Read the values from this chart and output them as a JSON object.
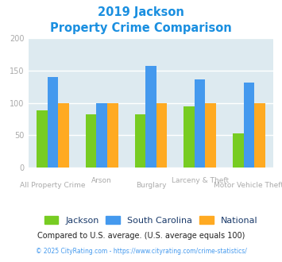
{
  "title_line1": "2019 Jackson",
  "title_line2": "Property Crime Comparison",
  "categories_top": [
    "",
    "Arson",
    "",
    "Larceny & Theft",
    ""
  ],
  "categories_bot": [
    "All Property Crime",
    "",
    "Burglary",
    "",
    "Motor Vehicle Theft"
  ],
  "jackson": [
    88,
    82,
    82,
    94,
    53
  ],
  "south_carolina": [
    140,
    100,
    157,
    136,
    131
  ],
  "national": [
    100,
    100,
    100,
    100,
    100
  ],
  "jackson_color": "#77cc22",
  "sc_color": "#4499ee",
  "national_color": "#ffaa22",
  "ylim": [
    0,
    200
  ],
  "yticks": [
    0,
    50,
    100,
    150,
    200
  ],
  "bg_color": "#ddeaf0",
  "title_color": "#1a8fe0",
  "tick_color": "#aaaaaa",
  "xlabel_color": "#aaaaaa",
  "legend_text_color": "#1a3a6a",
  "footer_text": "Compared to U.S. average. (U.S. average equals 100)",
  "footer_color": "#222222",
  "copyright_text": "© 2025 CityRating.com - https://www.cityrating.com/crime-statistics/",
  "copyright_color": "#4499ee",
  "legend_labels": [
    "Jackson",
    "South Carolina",
    "National"
  ],
  "bar_width": 0.22
}
